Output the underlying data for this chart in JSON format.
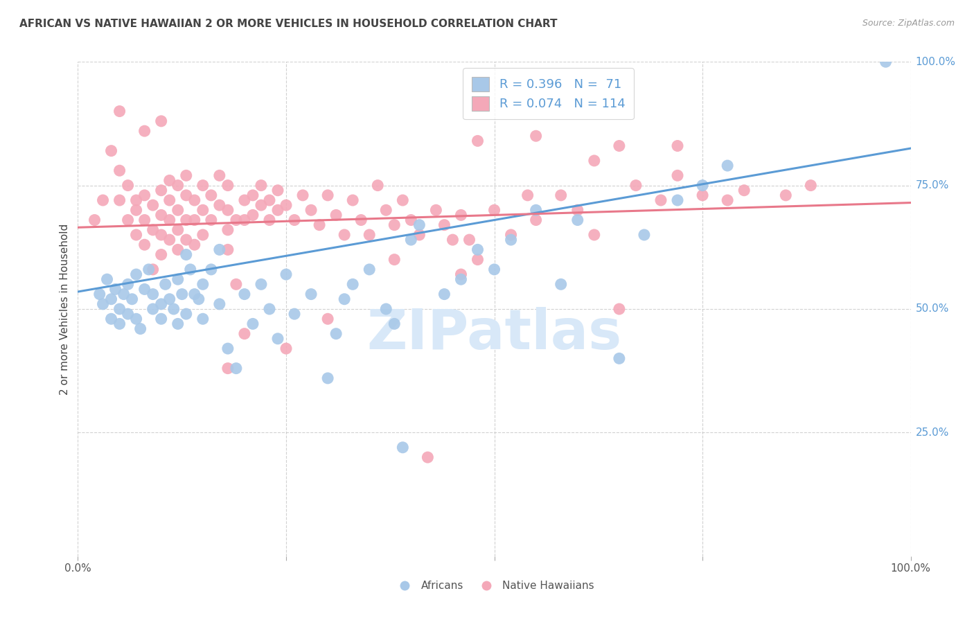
{
  "title": "AFRICAN VS NATIVE HAWAIIAN 2 OR MORE VEHICLES IN HOUSEHOLD CORRELATION CHART",
  "source": "Source: ZipAtlas.com",
  "ylabel": "2 or more Vehicles in Household",
  "xlim": [
    0.0,
    1.0
  ],
  "ylim": [
    0.0,
    1.0
  ],
  "y_tick_labels_right": [
    "100.0%",
    "75.0%",
    "50.0%",
    "25.0%"
  ],
  "y_ticks_right": [
    1.0,
    0.75,
    0.5,
    0.25
  ],
  "africans_label": "Africans",
  "hawaiians_label": "Native Hawaiians",
  "blue_color": "#A8C8E8",
  "pink_color": "#F4A8B8",
  "blue_line_color": "#5B9BD5",
  "pink_line_color": "#E8788A",
  "watermark": "ZIPatlas",
  "watermark_color": "#D8E8F8",
  "background_color": "#FFFFFF",
  "grid_color": "#CCCCCC",
  "title_color": "#444444",
  "axis_label_color": "#444444",
  "right_tick_color": "#5B9BD5",
  "legend_r_color": "#5B9BD5",
  "blue_scatter": [
    [
      0.026,
      0.53
    ],
    [
      0.03,
      0.51
    ],
    [
      0.035,
      0.56
    ],
    [
      0.04,
      0.48
    ],
    [
      0.04,
      0.52
    ],
    [
      0.045,
      0.54
    ],
    [
      0.05,
      0.5
    ],
    [
      0.05,
      0.47
    ],
    [
      0.055,
      0.53
    ],
    [
      0.06,
      0.49
    ],
    [
      0.06,
      0.55
    ],
    [
      0.065,
      0.52
    ],
    [
      0.07,
      0.48
    ],
    [
      0.07,
      0.57
    ],
    [
      0.075,
      0.46
    ],
    [
      0.08,
      0.54
    ],
    [
      0.085,
      0.58
    ],
    [
      0.09,
      0.5
    ],
    [
      0.09,
      0.53
    ],
    [
      0.1,
      0.51
    ],
    [
      0.1,
      0.48
    ],
    [
      0.105,
      0.55
    ],
    [
      0.11,
      0.52
    ],
    [
      0.115,
      0.5
    ],
    [
      0.12,
      0.47
    ],
    [
      0.12,
      0.56
    ],
    [
      0.125,
      0.53
    ],
    [
      0.13,
      0.49
    ],
    [
      0.13,
      0.61
    ],
    [
      0.135,
      0.58
    ],
    [
      0.14,
      0.53
    ],
    [
      0.145,
      0.52
    ],
    [
      0.15,
      0.48
    ],
    [
      0.15,
      0.55
    ],
    [
      0.16,
      0.58
    ],
    [
      0.17,
      0.51
    ],
    [
      0.17,
      0.62
    ],
    [
      0.18,
      0.42
    ],
    [
      0.19,
      0.38
    ],
    [
      0.2,
      0.53
    ],
    [
      0.21,
      0.47
    ],
    [
      0.22,
      0.55
    ],
    [
      0.23,
      0.5
    ],
    [
      0.24,
      0.44
    ],
    [
      0.25,
      0.57
    ],
    [
      0.26,
      0.49
    ],
    [
      0.28,
      0.53
    ],
    [
      0.3,
      0.36
    ],
    [
      0.31,
      0.45
    ],
    [
      0.32,
      0.52
    ],
    [
      0.33,
      0.55
    ],
    [
      0.35,
      0.58
    ],
    [
      0.37,
      0.5
    ],
    [
      0.38,
      0.47
    ],
    [
      0.39,
      0.22
    ],
    [
      0.4,
      0.64
    ],
    [
      0.41,
      0.67
    ],
    [
      0.44,
      0.53
    ],
    [
      0.46,
      0.56
    ],
    [
      0.48,
      0.62
    ],
    [
      0.5,
      0.58
    ],
    [
      0.52,
      0.64
    ],
    [
      0.55,
      0.7
    ],
    [
      0.58,
      0.55
    ],
    [
      0.6,
      0.68
    ],
    [
      0.65,
      0.4
    ],
    [
      0.68,
      0.65
    ],
    [
      0.72,
      0.72
    ],
    [
      0.75,
      0.75
    ],
    [
      0.78,
      0.79
    ],
    [
      0.97,
      1.0
    ]
  ],
  "pink_scatter": [
    [
      0.02,
      0.68
    ],
    [
      0.03,
      0.72
    ],
    [
      0.04,
      0.82
    ],
    [
      0.05,
      0.72
    ],
    [
      0.05,
      0.78
    ],
    [
      0.06,
      0.68
    ],
    [
      0.06,
      0.75
    ],
    [
      0.07,
      0.72
    ],
    [
      0.07,
      0.65
    ],
    [
      0.07,
      0.7
    ],
    [
      0.08,
      0.73
    ],
    [
      0.08,
      0.68
    ],
    [
      0.08,
      0.63
    ],
    [
      0.09,
      0.71
    ],
    [
      0.09,
      0.66
    ],
    [
      0.09,
      0.58
    ],
    [
      0.1,
      0.74
    ],
    [
      0.1,
      0.69
    ],
    [
      0.1,
      0.65
    ],
    [
      0.1,
      0.61
    ],
    [
      0.11,
      0.76
    ],
    [
      0.11,
      0.72
    ],
    [
      0.11,
      0.68
    ],
    [
      0.11,
      0.64
    ],
    [
      0.12,
      0.75
    ],
    [
      0.12,
      0.7
    ],
    [
      0.12,
      0.66
    ],
    [
      0.12,
      0.62
    ],
    [
      0.13,
      0.77
    ],
    [
      0.13,
      0.73
    ],
    [
      0.13,
      0.68
    ],
    [
      0.13,
      0.64
    ],
    [
      0.14,
      0.72
    ],
    [
      0.14,
      0.68
    ],
    [
      0.14,
      0.63
    ],
    [
      0.15,
      0.75
    ],
    [
      0.15,
      0.7
    ],
    [
      0.15,
      0.65
    ],
    [
      0.16,
      0.73
    ],
    [
      0.16,
      0.68
    ],
    [
      0.17,
      0.77
    ],
    [
      0.17,
      0.71
    ],
    [
      0.18,
      0.75
    ],
    [
      0.18,
      0.7
    ],
    [
      0.18,
      0.66
    ],
    [
      0.18,
      0.62
    ],
    [
      0.19,
      0.68
    ],
    [
      0.19,
      0.55
    ],
    [
      0.2,
      0.72
    ],
    [
      0.2,
      0.68
    ],
    [
      0.21,
      0.73
    ],
    [
      0.21,
      0.69
    ],
    [
      0.22,
      0.75
    ],
    [
      0.22,
      0.71
    ],
    [
      0.23,
      0.72
    ],
    [
      0.23,
      0.68
    ],
    [
      0.24,
      0.74
    ],
    [
      0.24,
      0.7
    ],
    [
      0.25,
      0.71
    ],
    [
      0.26,
      0.68
    ],
    [
      0.27,
      0.73
    ],
    [
      0.28,
      0.7
    ],
    [
      0.29,
      0.67
    ],
    [
      0.3,
      0.73
    ],
    [
      0.31,
      0.69
    ],
    [
      0.32,
      0.65
    ],
    [
      0.33,
      0.72
    ],
    [
      0.34,
      0.68
    ],
    [
      0.35,
      0.65
    ],
    [
      0.36,
      0.75
    ],
    [
      0.37,
      0.7
    ],
    [
      0.38,
      0.67
    ],
    [
      0.39,
      0.72
    ],
    [
      0.4,
      0.68
    ],
    [
      0.41,
      0.65
    ],
    [
      0.43,
      0.7
    ],
    [
      0.44,
      0.67
    ],
    [
      0.45,
      0.64
    ],
    [
      0.46,
      0.69
    ],
    [
      0.47,
      0.64
    ],
    [
      0.48,
      0.6
    ],
    [
      0.5,
      0.7
    ],
    [
      0.52,
      0.65
    ],
    [
      0.54,
      0.73
    ],
    [
      0.55,
      0.68
    ],
    [
      0.58,
      0.73
    ],
    [
      0.6,
      0.7
    ],
    [
      0.62,
      0.65
    ],
    [
      0.65,
      0.5
    ],
    [
      0.67,
      0.75
    ],
    [
      0.7,
      0.72
    ],
    [
      0.72,
      0.77
    ],
    [
      0.75,
      0.73
    ],
    [
      0.78,
      0.72
    ],
    [
      0.8,
      0.74
    ],
    [
      0.85,
      0.73
    ],
    [
      0.88,
      0.75
    ],
    [
      0.42,
      0.2
    ],
    [
      0.08,
      0.86
    ],
    [
      0.48,
      0.84
    ],
    [
      0.62,
      0.8
    ],
    [
      0.65,
      0.83
    ],
    [
      0.05,
      0.9
    ],
    [
      0.72,
      0.83
    ],
    [
      0.1,
      0.88
    ],
    [
      0.55,
      0.85
    ],
    [
      0.38,
      0.6
    ],
    [
      0.46,
      0.57
    ],
    [
      0.2,
      0.45
    ],
    [
      0.25,
      0.42
    ],
    [
      0.3,
      0.48
    ],
    [
      0.18,
      0.38
    ]
  ],
  "blue_line_y0": 0.535,
  "blue_line_y1": 0.825,
  "pink_line_y0": 0.665,
  "pink_line_y1": 0.715
}
